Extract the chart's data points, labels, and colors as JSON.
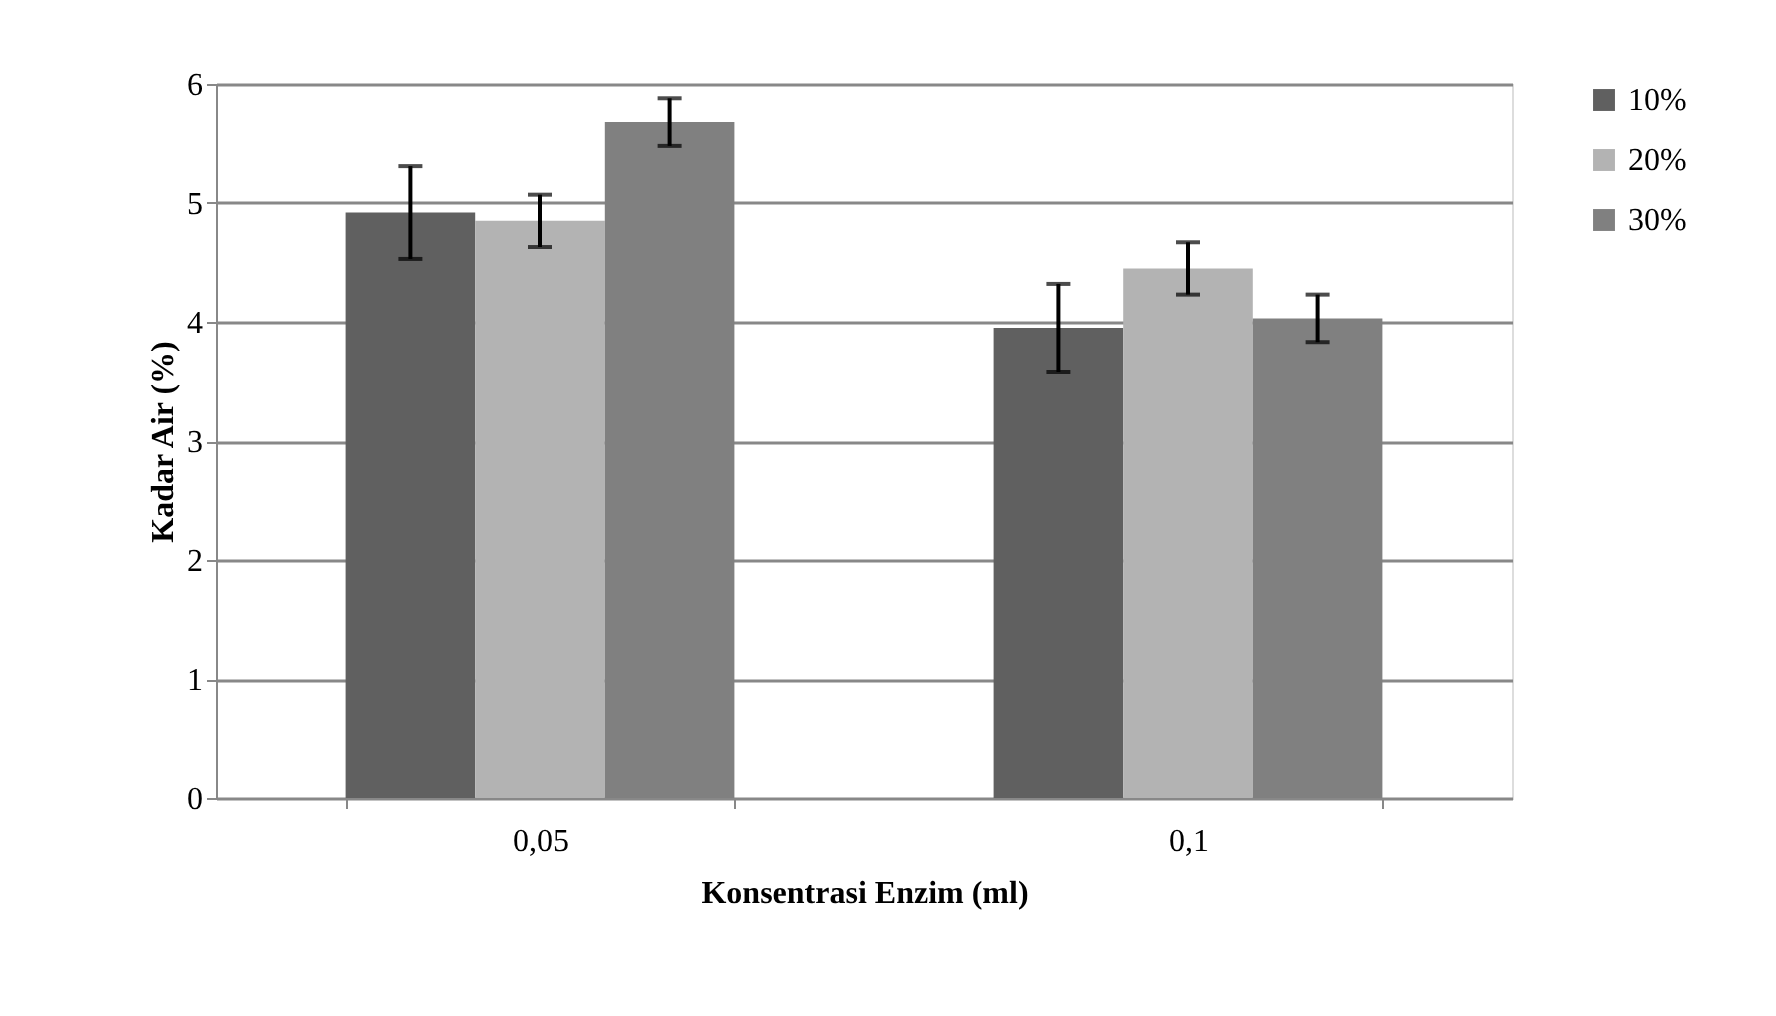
{
  "chart_data": {
    "type": "bar",
    "xlabel": "Konsentrasi Enzim (ml)",
    "ylabel": "Kadar Air (%)",
    "categories": [
      "0,05",
      "0,1"
    ],
    "series": [
      {
        "name": "10%",
        "color": "#606060",
        "values": [
          4.92,
          3.95
        ],
        "errors": [
          0.39,
          0.37
        ]
      },
      {
        "name": "20%",
        "color": "#b3b3b3",
        "values": [
          4.85,
          4.45
        ],
        "errors": [
          0.22,
          0.22
        ]
      },
      {
        "name": "30%",
        "color": "#808080",
        "values": [
          5.68,
          4.03
        ],
        "errors": [
          0.2,
          0.2
        ]
      }
    ],
    "ylim": [
      0,
      6
    ],
    "yticks": [
      0,
      1,
      2,
      3,
      4,
      5,
      6
    ],
    "grid": "y",
    "legend": "right"
  }
}
